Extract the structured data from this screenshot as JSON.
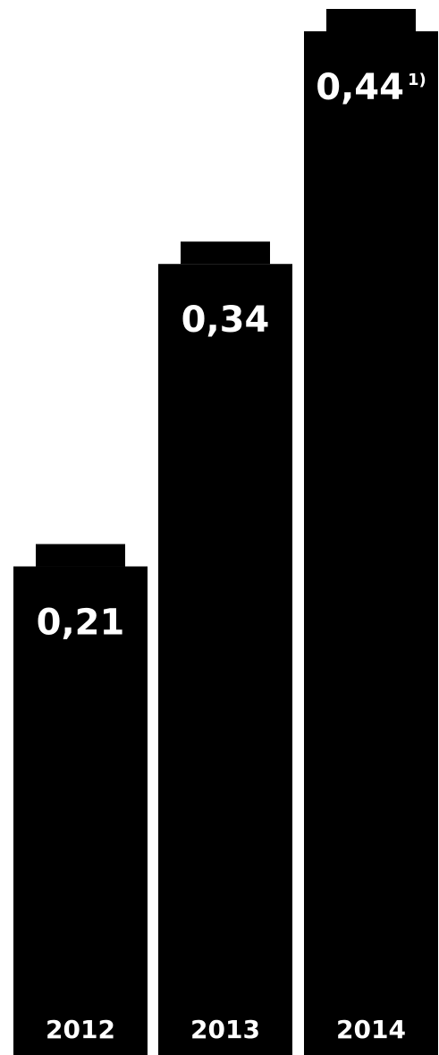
{
  "chart_data": {
    "type": "bar",
    "categories": [
      "2012",
      "2013",
      "2014"
    ],
    "values": [
      0.21,
      0.34,
      0.44
    ],
    "value_labels": [
      "0,21",
      "0,34",
      "0,44"
    ],
    "value_footnotes": [
      "",
      "",
      "1)"
    ],
    "title": "",
    "xlabel": "",
    "ylabel": "",
    "ylim": [
      0,
      0.44
    ],
    "grid": false,
    "colors": {
      "bar": "#000000",
      "label": "#ffffff",
      "background": "#ffffff"
    }
  }
}
